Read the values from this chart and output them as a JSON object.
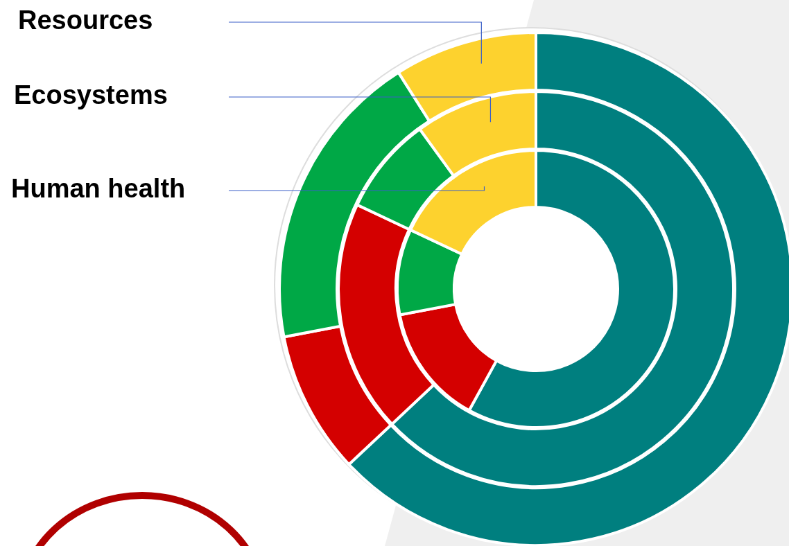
{
  "chart_data": {
    "type": "donut",
    "categories": [
      null,
      null,
      null,
      null
    ],
    "colors": [
      "#007f7f",
      "#d40000",
      "#00a846",
      "#fdd22e"
    ],
    "legend": false,
    "annotations": [
      "Resources",
      "Ecosystems",
      "Human health"
    ],
    "series": [
      {
        "values": [
          63,
          9,
          19,
          9
        ]
      },
      {
        "values": [
          63,
          19,
          8,
          10
        ]
      },
      {
        "values": [
          58,
          14,
          10,
          18
        ]
      }
    ]
  }
}
